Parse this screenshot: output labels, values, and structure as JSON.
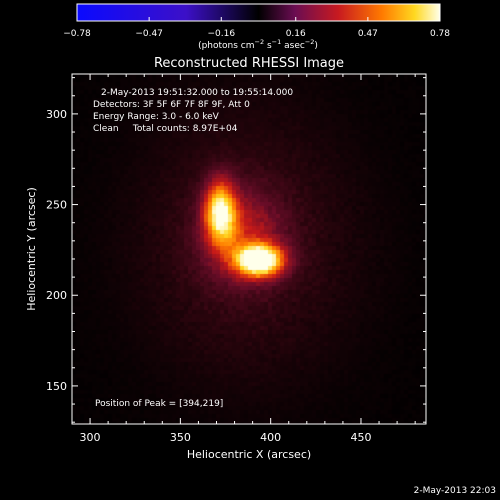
{
  "colorbar": {
    "tick_labels": [
      "−0.78",
      "−0.47",
      "−0.16",
      "0.16",
      "0.47",
      "0.78"
    ],
    "tick_values": [
      -0.78,
      -0.47,
      -0.16,
      0.16,
      0.47,
      0.78
    ],
    "unit_prefix": "(photons cm",
    "unit_exp1": "−2",
    "unit_mid": " s",
    "unit_exp2": "−1",
    "unit_mid2": " asec",
    "unit_exp3": "−2",
    "unit_suffix": ")"
  },
  "footer": {
    "timestamp": "2-May-2013 22:03"
  },
  "chart_data": {
    "type": "heatmap",
    "title": "Reconstructed RHESSI Image",
    "xlabel": "Heliocentric X (arcsec)",
    "ylabel": "Heliocentric Y (arcsec)",
    "xlim": [
      290,
      486
    ],
    "ylim": [
      129,
      322
    ],
    "x_ticks": [
      300,
      350,
      400,
      450
    ],
    "y_ticks": [
      150,
      200,
      250,
      300
    ],
    "x_tick_labels": [
      "300",
      "350",
      "400",
      "450"
    ],
    "y_tick_labels": [
      "150",
      "200",
      "250",
      "300"
    ],
    "value_range": [
      -0.78,
      0.78
    ],
    "annotations": [
      "2-May-2013 19:51:32.000 to 19:55:14.000",
      "Detectors: 3F 5F 6F 7F 8F 9F, Att 0",
      "Energy Range: 3.0 - 6.0 keV",
      "Clean     Total counts: 8.97E+04"
    ],
    "peak_label": "Position of Peak = [394,219]",
    "sources": [
      {
        "x": 394,
        "y": 219,
        "sigma_x": 9,
        "sigma_y": 6,
        "amplitude": 0.78
      },
      {
        "x": 372,
        "y": 246,
        "sigma_x": 6,
        "sigma_y": 12,
        "amplitude": 0.6
      },
      {
        "x": 384,
        "y": 232,
        "sigma_x": 16,
        "sigma_y": 18,
        "amplitude": 0.26
      },
      {
        "x": 385,
        "y": 230,
        "sigma_x": 45,
        "sigma_y": 60,
        "amplitude": 0.09
      }
    ]
  }
}
